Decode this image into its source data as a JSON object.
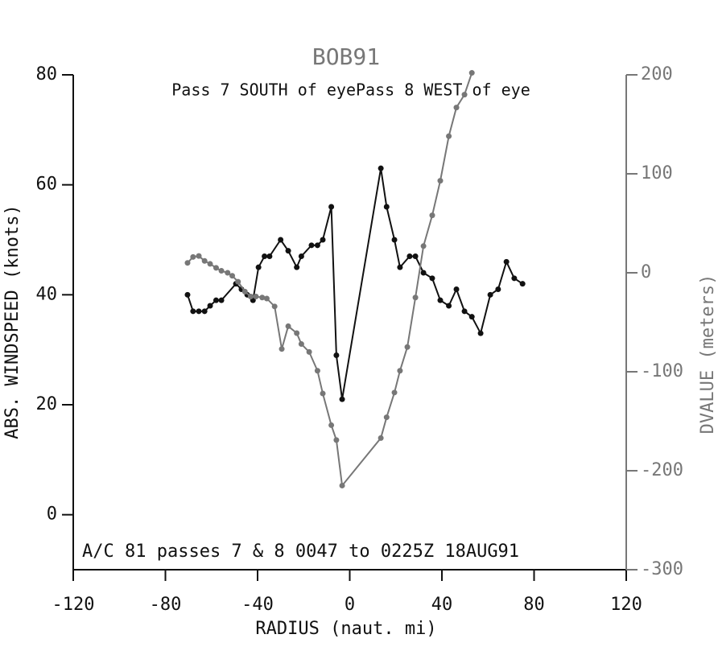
{
  "chart_data": {
    "type": "line",
    "title": "BOB91",
    "subtitle": "Pass  7 SOUTH of eyePass  8 WEST of eye",
    "annotation": "A/C 81 passes  7 &  8    0047 to 0225Z 18AUG91",
    "x_label": "RADIUS (naut. mi)",
    "y_label": "ABS. WINDSPEED (knots)",
    "y2_label": "DVALUE (meters)",
    "xlim": [
      -120,
      120
    ],
    "xticks": [
      -120,
      -80,
      -40,
      0,
      40,
      80,
      120
    ],
    "ylim": [
      -10,
      80
    ],
    "yticks": [
      0,
      20,
      40,
      60,
      80
    ],
    "y2lim": [
      -300,
      200
    ],
    "y2ticks": [
      -300,
      -200,
      -100,
      0,
      100,
      200
    ],
    "series": [
      {
        "name": "ABS. WINDSPEED",
        "color": "#111111",
        "x": [
          -70.4,
          -68,
          -65.5,
          -63,
          -60.6,
          -58,
          -55.7,
          -49.4,
          -47,
          -44.5,
          -42,
          -39.6,
          -37,
          -34.8,
          -30,
          -26.7,
          -23,
          -21,
          -16.6,
          -14,
          -11.7,
          -8,
          -5.8,
          -3.3,
          13.5,
          16,
          19.4,
          21.8,
          26,
          28.5,
          32,
          35.8,
          39.3,
          43,
          46.3,
          49.8,
          53,
          56.8,
          61,
          64.4,
          68,
          71.4,
          75
        ],
        "values": [
          40,
          37,
          37,
          37,
          38,
          39,
          39,
          42,
          41,
          40,
          39,
          45,
          47,
          47,
          50,
          48,
          45,
          47,
          49,
          49,
          50,
          56,
          29,
          21,
          63,
          56,
          50,
          45,
          47,
          47,
          44,
          43,
          39,
          38,
          41,
          37,
          36,
          33,
          40,
          41,
          46,
          43,
          42
        ]
      },
      {
        "name": "DVALUE",
        "color": "#777777",
        "axis": "y2",
        "x": [
          -70.4,
          -68,
          -65.5,
          -63,
          -60.6,
          -58,
          -55.7,
          -53,
          -51,
          -48.5,
          -45.5,
          -43,
          -40.7,
          -38,
          -36,
          -32.6,
          -29.5,
          -26.7,
          -23,
          -21,
          -17.6,
          -14,
          -11.7,
          -8,
          -5.8,
          -3.3,
          13.5,
          16,
          19.4,
          21.8,
          25,
          28.5,
          32,
          35.8,
          39.3,
          43,
          46.3,
          49.8,
          53
        ],
        "values": [
          10,
          16,
          17,
          12,
          9,
          5,
          2,
          0,
          -3,
          -9,
          -19,
          -24,
          -24,
          -25,
          -26,
          -34,
          -77,
          -54,
          -61,
          -72,
          -80,
          -99,
          -122,
          -154,
          -169,
          -215,
          -167,
          -146,
          -121,
          -99,
          -75,
          -25,
          27,
          58,
          93,
          138,
          167,
          180,
          202
        ]
      }
    ]
  }
}
